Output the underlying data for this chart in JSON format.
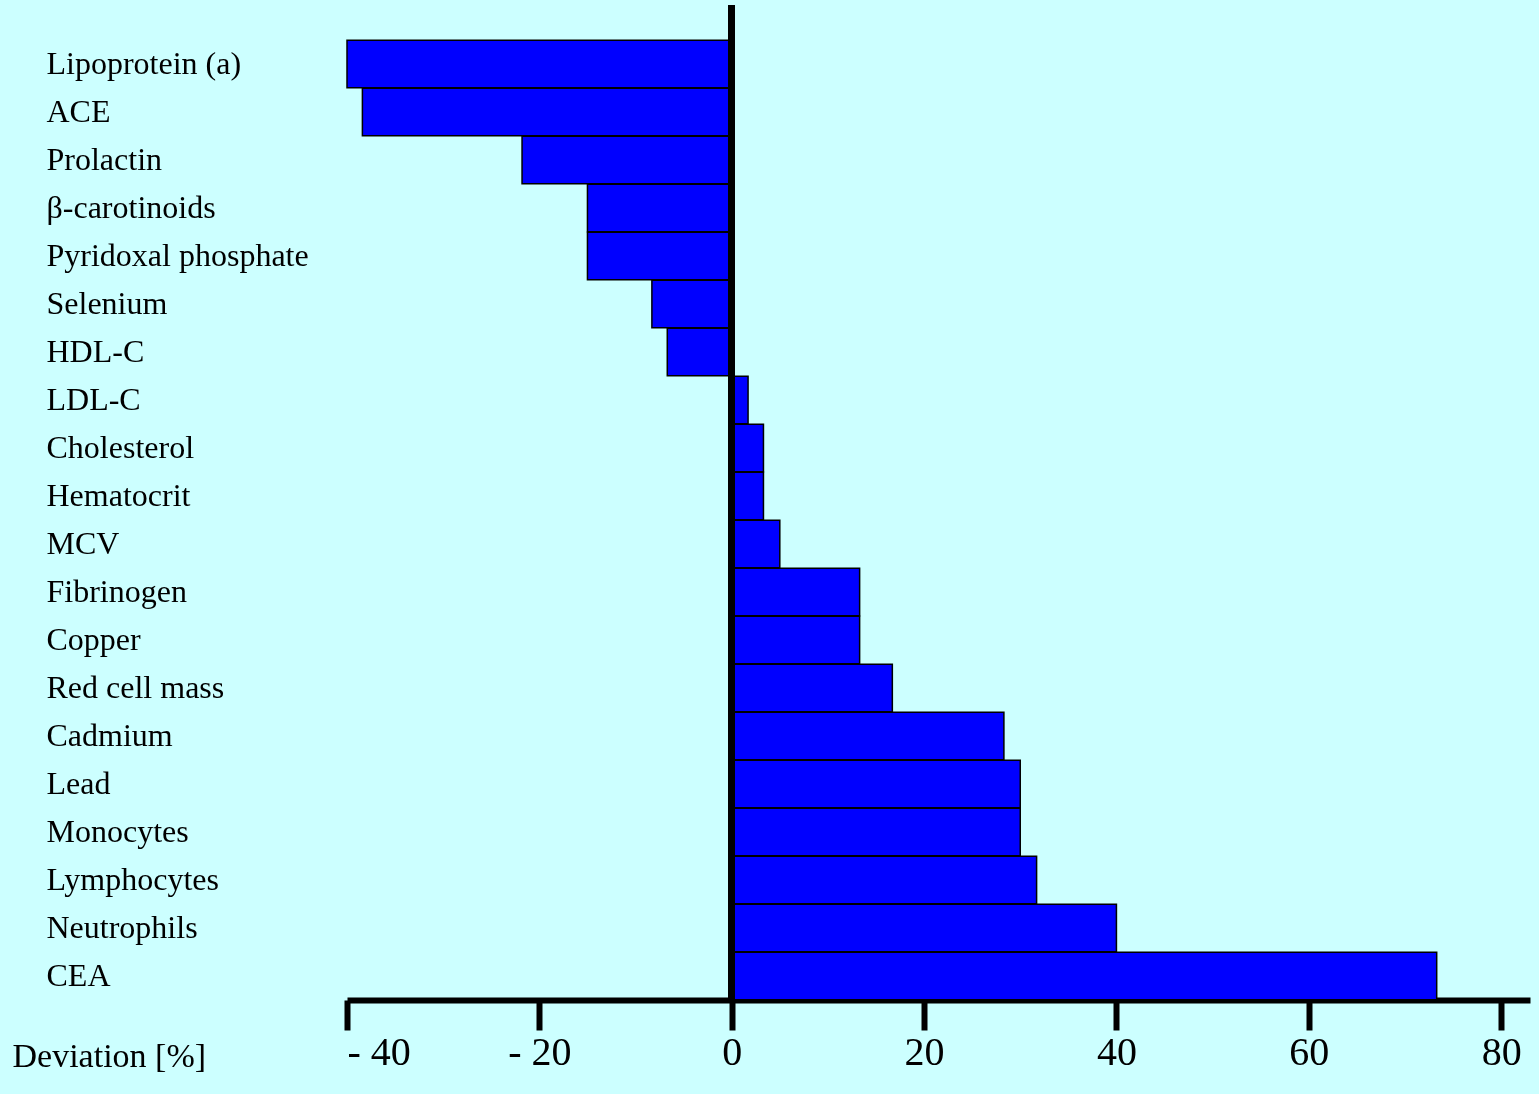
{
  "chart_data": {
    "type": "bar",
    "orientation": "horizontal",
    "xlabel": "Deviation [%]",
    "categories": [
      "Lipoprotein (a)",
      "ACE",
      "Prolactin",
      "β-carotinoids",
      "Pyridoxal phosphate",
      "Selenium",
      "HDL-C",
      "LDL-C",
      "Cholesterol",
      "Hematocrit",
      "MCV",
      "Fibrinogen",
      "Copper",
      "Red cell mass",
      "Cadmium",
      "Lead",
      "Monocytes",
      "Lymphocytes",
      "Neutrophils",
      "CEA"
    ],
    "values": [
      -40,
      -38.4,
      -21.8,
      -15,
      -15,
      -8.3,
      -6.7,
      1.7,
      3.3,
      3.3,
      5,
      13.3,
      13.3,
      16.7,
      28.3,
      30,
      30,
      31.7,
      40,
      73.3
    ],
    "color": "#0000ff",
    "xlim": [
      -40,
      83
    ],
    "xticks": [
      {
        "value": -40,
        "label": "- 40"
      },
      {
        "value": -20,
        "label": "- 20"
      },
      0,
      20,
      40,
      60,
      80
    ],
    "line_style": "solid"
  }
}
